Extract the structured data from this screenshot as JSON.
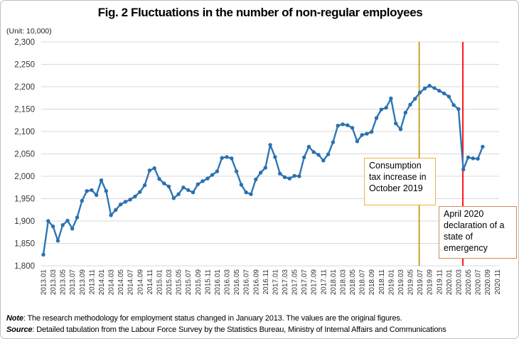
{
  "figure": {
    "title": "Fig. 2 Fluctuations in the number of non-regular employees",
    "unit_label": "(Unit: 10,000)"
  },
  "annotations": {
    "consumption_tax": {
      "text": "Consumption tax increase in October 2019",
      "border_color": "#ecb23d"
    },
    "emergency": {
      "text": "April 2020 declaration of a state of emergency",
      "border_color": "#d08a55"
    }
  },
  "notes": {
    "note_label": "Note",
    "note_text": ": The research methodology for employment status changed in January 2013. The values are the original figures.",
    "source_label": "Source",
    "source_text": ": Detailed tabulation from the Labour Force Survey by the Statistics Bureau, Ministry of Internal Affairs and Communications"
  },
  "chart_data": {
    "type": "line",
    "title": "Fig. 2 Fluctuations in the number of non-regular employees",
    "ylabel": "(Unit: 10,000)",
    "ylim": [
      1800,
      2300
    ],
    "y_tick_step": 50,
    "y_tick_labels": [
      "2,300",
      "2,250",
      "2,200",
      "2,150",
      "2,100",
      "2,050",
      "2,000",
      "1,950",
      "1,900",
      "1,850",
      "1,800"
    ],
    "grid": true,
    "series_color": "#2e75b6",
    "marker_color": "#2c70ae",
    "x_axis_start": "2013.01",
    "x_axis_end": "2020.11",
    "x_tick_labels": [
      "2013.01",
      "2013.03",
      "2013.05",
      "2013.07",
      "2013.09",
      "2013.11",
      "2014.01",
      "2014.03",
      "2014.05",
      "2014.07",
      "2014.09",
      "2014.11",
      "2015.01",
      "2015.03",
      "2015.05",
      "2015.07",
      "2015.09",
      "2015.11",
      "2016.01",
      "2016.03",
      "2016.05",
      "2016.07",
      "2016.09",
      "2016.11",
      "2017.01",
      "2017.03",
      "2017.05",
      "2017.07",
      "2017.09",
      "2017.11",
      "2018.01",
      "2018.03",
      "2018.05",
      "2018.07",
      "2018.09",
      "2018.11",
      "2019.01",
      "2019.03",
      "2019.05",
      "2019.07",
      "2019.09",
      "2019.11",
      "2020.01",
      "2020.03",
      "2020.05",
      "2020.07",
      "2020.09",
      "2020.11"
    ],
    "x": [
      "2013.01",
      "2013.02",
      "2013.03",
      "2013.04",
      "2013.05",
      "2013.06",
      "2013.07",
      "2013.08",
      "2013.09",
      "2013.10",
      "2013.11",
      "2013.12",
      "2014.01",
      "2014.02",
      "2014.03",
      "2014.04",
      "2014.05",
      "2014.06",
      "2014.07",
      "2014.08",
      "2014.09",
      "2014.10",
      "2014.11",
      "2014.12",
      "2015.01",
      "2015.02",
      "2015.03",
      "2015.04",
      "2015.05",
      "2015.06",
      "2015.07",
      "2015.08",
      "2015.09",
      "2015.10",
      "2015.11",
      "2015.12",
      "2016.01",
      "2016.02",
      "2016.03",
      "2016.04",
      "2016.05",
      "2016.06",
      "2016.07",
      "2016.08",
      "2016.09",
      "2016.10",
      "2016.11",
      "2016.12",
      "2017.01",
      "2017.02",
      "2017.03",
      "2017.04",
      "2017.05",
      "2017.06",
      "2017.07",
      "2017.08",
      "2017.09",
      "2017.10",
      "2017.11",
      "2017.12",
      "2018.01",
      "2018.02",
      "2018.03",
      "2018.04",
      "2018.05",
      "2018.06",
      "2018.07",
      "2018.08",
      "2018.09",
      "2018.10",
      "2018.11",
      "2018.12",
      "2019.01",
      "2019.02",
      "2019.03",
      "2019.04",
      "2019.05",
      "2019.06",
      "2019.07",
      "2019.08",
      "2019.09",
      "2019.10",
      "2019.11",
      "2019.12",
      "2020.01",
      "2020.02",
      "2020.03",
      "2020.04",
      "2020.05",
      "2020.06",
      "2020.07",
      "2020.08"
    ],
    "values": [
      1825,
      1900,
      1888,
      1856,
      1891,
      1901,
      1883,
      1908,
      1945,
      1967,
      1969,
      1958,
      1991,
      1967,
      1913,
      1925,
      1937,
      1943,
      1948,
      1955,
      1965,
      1980,
      2013,
      2018,
      1994,
      1984,
      1977,
      1951,
      1960,
      1975,
      1969,
      1964,
      1982,
      1989,
      1995,
      2003,
      2011,
      2041,
      2043,
      2040,
      2011,
      1981,
      1964,
      1960,
      1993,
      2008,
      2019,
      2070,
      2043,
      2006,
      1998,
      1995,
      2001,
      2000,
      2042,
      2066,
      2054,
      2048,
      2035,
      2049,
      2076,
      2113,
      2116,
      2114,
      2108,
      2078,
      2092,
      2095,
      2099,
      2130,
      2149,
      2153,
      2174,
      2118,
      2105,
      2142,
      2160,
      2173,
      2187,
      2196,
      2202,
      2197,
      2191,
      2185,
      2178,
      2159,
      2150,
      2015,
      2042,
      2040,
      2039,
      2066
    ],
    "vlines": [
      {
        "name": "tax-increase-line",
        "month_index": 77.85,
        "color": "#bf9000",
        "width": 1.6
      },
      {
        "name": "emergency-line",
        "month_index": 86.9,
        "color": "#ff0000",
        "width": 1.8
      }
    ],
    "legend_position": "none"
  }
}
